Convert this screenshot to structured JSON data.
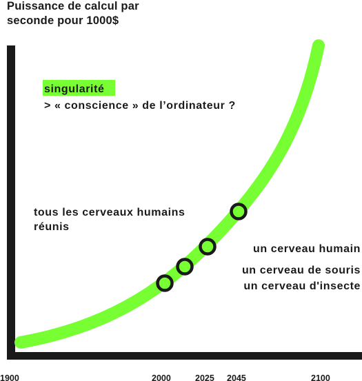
{
  "chart_data": {
    "type": "line",
    "title": [
      "Puissance de calcul par",
      "seconde pour 1000$"
    ],
    "x_ticks": [
      "1900",
      "2000",
      "2025",
      "2045",
      "2100"
    ],
    "milestones": [
      {
        "label": "un cerveau d'insecte"
      },
      {
        "label": "un cerveau de souris"
      },
      {
        "label": "un cerveau humain"
      },
      {
        "label": "tous les cerveaux humains réunis"
      }
    ],
    "singularity": {
      "highlight": "singularité",
      "text": "> « conscience » de l’ordinateur ?"
    },
    "grid": false,
    "legend": "none"
  },
  "colors": {
    "curve": "#77ff33",
    "axis": "#1a1a1a",
    "marker_fill": "#77ff33",
    "marker_stroke": "#1a1a1a",
    "highlight_bg": "#77ff33"
  }
}
